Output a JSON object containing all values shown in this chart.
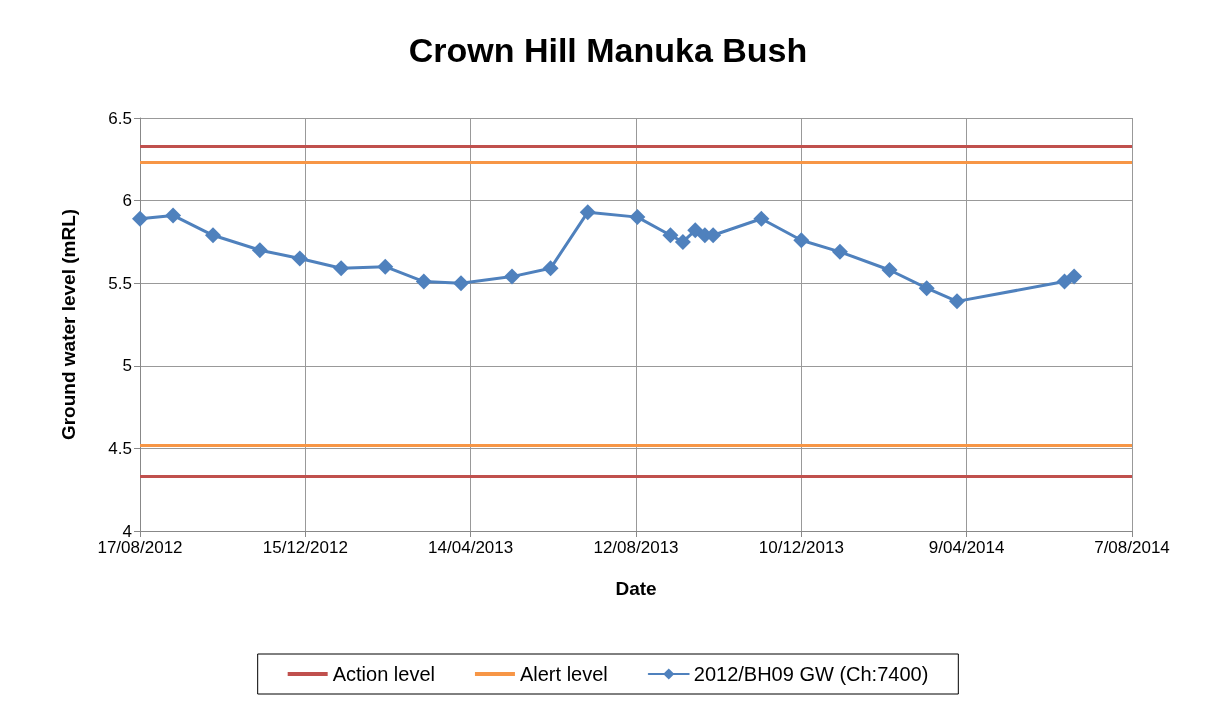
{
  "chart_data": {
    "type": "line",
    "title": "Crown Hill Manuka Bush",
    "xlabel": "Date",
    "ylabel": "Ground water level (mRL)",
    "xlim": [
      "2012-08-17",
      "2014-08-07"
    ],
    "xticks": [
      {
        "value": "2012-08-17",
        "label": "17/08/2012"
      },
      {
        "value": "2012-12-15",
        "label": "15/12/2012"
      },
      {
        "value": "2013-04-14",
        "label": "14/04/2013"
      },
      {
        "value": "2013-08-12",
        "label": "12/08/2013"
      },
      {
        "value": "2013-12-10",
        "label": "10/12/2013"
      },
      {
        "value": "2014-04-09",
        "label": "9/04/2014"
      },
      {
        "value": "2014-08-07",
        "label": "7/08/2014"
      }
    ],
    "ylim": [
      4,
      6.5
    ],
    "yticks": [
      4,
      4.5,
      5,
      5.5,
      6,
      6.5
    ],
    "grid": true,
    "legend": "bottom",
    "ref_lines": [
      {
        "axis": "y",
        "value": 6.33,
        "label": "Action level",
        "color": "#c0504d"
      },
      {
        "axis": "y",
        "value": 4.33,
        "color": "#c0504d"
      },
      {
        "axis": "y",
        "value": 6.23,
        "label": "Alert level",
        "color": "#f79646"
      },
      {
        "axis": "y",
        "value": 4.52,
        "color": "#f79646"
      }
    ],
    "marker": "diamond",
    "line_style": "solid",
    "series": [
      {
        "name": "2012/BH09 GW (Ch:7400)",
        "color": "#4f81bd",
        "x": [
          "2012-08-17",
          "2012-09-10",
          "2012-10-09",
          "2012-11-12",
          "2012-12-11",
          "2013-01-10",
          "2013-02-11",
          "2013-03-11",
          "2013-04-07",
          "2013-05-14",
          "2013-06-11",
          "2013-07-08",
          "2013-08-13",
          "2013-09-06",
          "2013-09-15",
          "2013-09-24",
          "2013-10-01",
          "2013-10-07",
          "2013-11-11",
          "2013-12-10",
          "2014-01-07",
          "2014-02-12",
          "2014-03-11",
          "2014-04-02",
          "2014-06-19",
          "2014-06-26"
        ],
        "values": [
          5.89,
          5.91,
          5.79,
          5.7,
          5.65,
          5.59,
          5.6,
          5.51,
          5.5,
          5.54,
          5.59,
          5.93,
          5.9,
          5.79,
          5.75,
          5.82,
          5.79,
          5.79,
          5.89,
          5.76,
          5.69,
          5.58,
          5.47,
          5.39,
          5.51,
          5.54
        ]
      }
    ]
  }
}
